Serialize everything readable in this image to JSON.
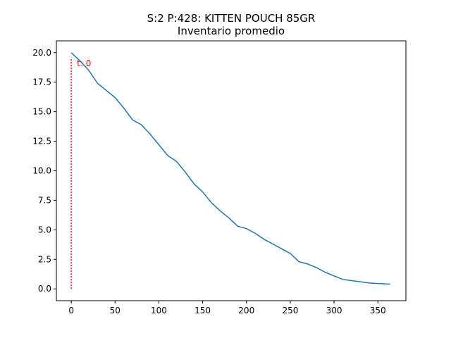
{
  "chart_data": {
    "type": "line",
    "title": "S:2 P:428: KITTEN POUCH 85GR",
    "subtitle": "Inventario promedio",
    "xlabel": "",
    "ylabel": "",
    "xlim": [
      -17,
      382
    ],
    "ylim": [
      -1,
      21
    ],
    "xticks": [
      0,
      50,
      100,
      150,
      200,
      250,
      300,
      350
    ],
    "yticks": [
      0.0,
      2.5,
      5.0,
      7.5,
      10.0,
      12.5,
      15.0,
      17.5,
      20.0
    ],
    "ytick_labels": [
      "0.0",
      "2.5",
      "5.0",
      "7.5",
      "10.0",
      "12.5",
      "15.0",
      "17.5",
      "20.0"
    ],
    "grid": false,
    "series": [
      {
        "color": "#1f77b4",
        "x": [
          0,
          10,
          20,
          30,
          40,
          50,
          60,
          70,
          80,
          90,
          100,
          110,
          120,
          130,
          140,
          150,
          160,
          170,
          180,
          190,
          200,
          210,
          220,
          230,
          240,
          250,
          260,
          270,
          280,
          290,
          300,
          310,
          320,
          330,
          340,
          350,
          364
        ],
        "y": [
          20.0,
          19.3,
          18.5,
          17.4,
          16.8,
          16.2,
          15.3,
          14.3,
          13.9,
          13.1,
          12.2,
          11.3,
          10.8,
          9.9,
          8.9,
          8.2,
          7.3,
          6.6,
          6.0,
          5.3,
          5.1,
          4.7,
          4.2,
          3.8,
          3.4,
          3.0,
          2.3,
          2.1,
          1.8,
          1.4,
          1.1,
          0.8,
          0.7,
          0.6,
          0.5,
          0.45,
          0.4
        ]
      }
    ],
    "vline": {
      "x": 0,
      "y_range": [
        0,
        20
      ],
      "color": "#ff0000",
      "label": "t: 0"
    }
  }
}
